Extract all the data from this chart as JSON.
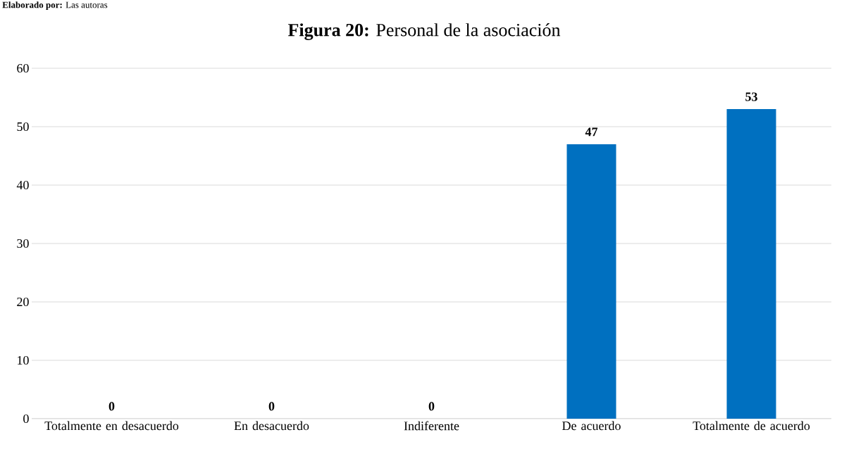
{
  "chart_data": {
    "type": "bar",
    "title": "**Figura 20:** Personal de la asociación",
    "annotations": [
      "**Elaborado por:** Las autoras"
    ],
    "categories": [
      "Totalmente en desacuerdo",
      "En desacuerdo",
      "Indiferente",
      "De acuerdo",
      "Totalmente de acuerdo"
    ],
    "values": [
      0,
      0,
      0,
      47,
      53
    ],
    "color": "#0070c0",
    "ylim": [
      0,
      60
    ],
    "yticks": [
      0,
      10,
      20,
      30,
      40,
      50,
      60
    ],
    "grid": "y",
    "data_labels": true
  }
}
